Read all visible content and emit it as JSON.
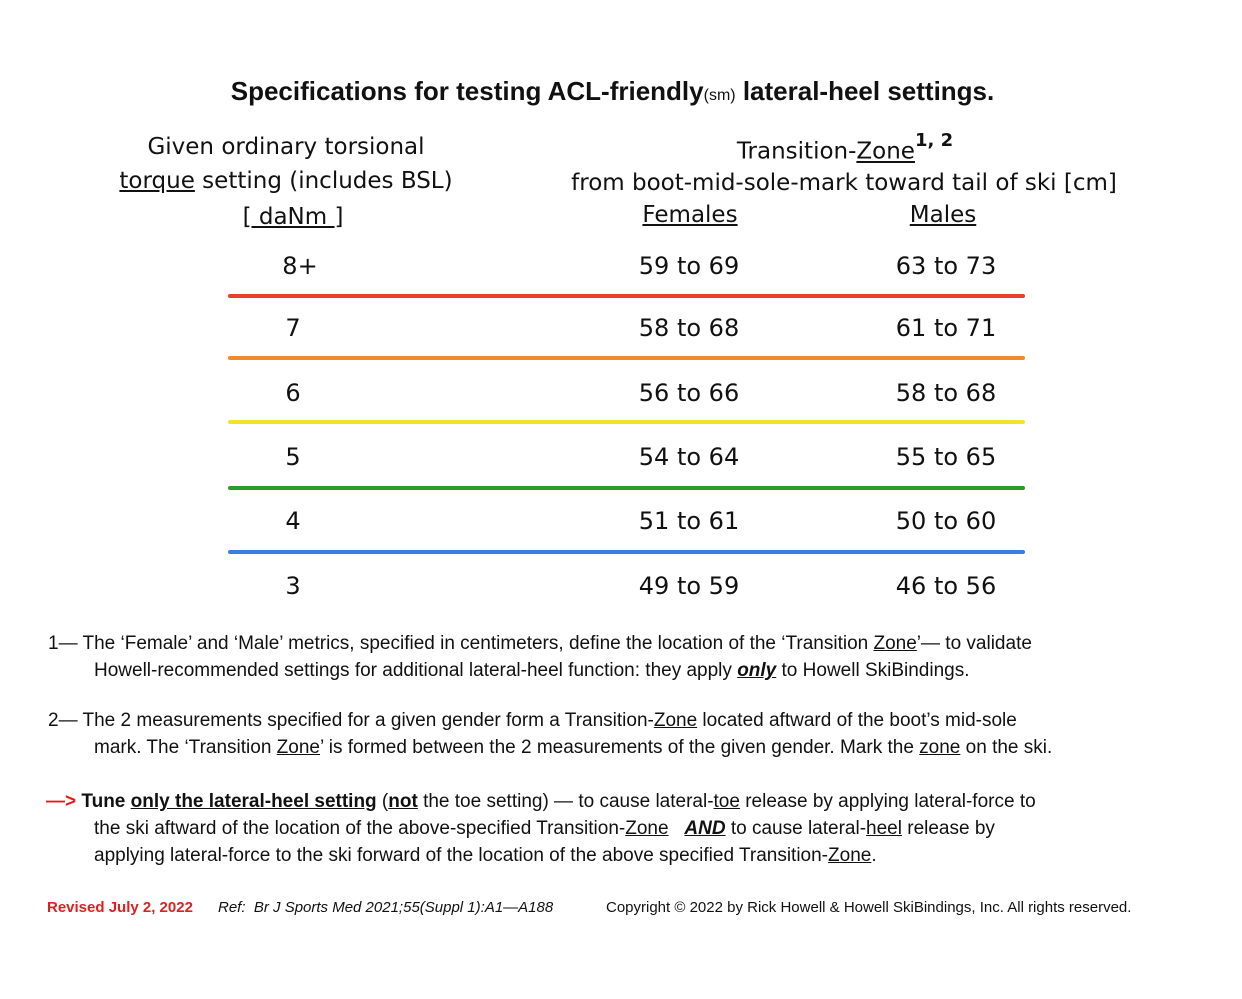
{
  "title": {
    "pre": "Specifications for testing ACL-friendly",
    "sm": "(sm)",
    "post": " lateral-heel settings."
  },
  "left_header": {
    "line1": "Given ordinary torsional",
    "line2_u": "torque",
    "line2_rest": " setting (includes BSL)",
    "unit": "[ daNm ]"
  },
  "right_header": {
    "line1_pre": "Transition-",
    "line1_u": "Zone",
    "sup": "1, 2",
    "line2": "from boot-mid-sole-mark toward tail of ski [cm]",
    "females": "Females",
    "males": "Males"
  },
  "rows": [
    {
      "torque": "8+",
      "female": "59 to 69",
      "male": "63 to 73"
    },
    {
      "torque": "7",
      "female": "58 to 68",
      "male": "61 to 71"
    },
    {
      "torque": "6",
      "female": "56 to 66",
      "male": "58 to 68"
    },
    {
      "torque": "5",
      "female": "54 to 64",
      "male": "55 to 65"
    },
    {
      "torque": "4",
      "female": "51 to 61",
      "male": "50 to 60"
    },
    {
      "torque": "3",
      "female": "49 to 59",
      "male": "46 to 56"
    }
  ],
  "rule_colors": [
    "#e8402a",
    "#f08a2a",
    "#f2e22a",
    "#2a9a2a",
    "#3a7ee0"
  ],
  "notes": {
    "n1_a": "1—  The ‘Female’ and ‘Male’ metrics, specified in centimeters, define the location of the ‘Transition ",
    "n1_zone": "Zone",
    "n1_b": "’— to validate",
    "n1_c": "Howell-recommended settings for additional lateral-heel function:  they apply  ",
    "n1_only": "only",
    "n1_d": "  to Howell SkiBindings.",
    "n2_a": "2—  The 2 measurements specified for a given gender form a Transition-",
    "n2_zone": "Zone",
    "n2_b": " located aftward of the boot’s mid-sole",
    "n2_c": "mark.  The ‘Transition ",
    "n2_zone2": "Zone",
    "n2_d": "’ is formed between the 2 measurements of the given gender.  Mark the ",
    "n2_zone3": "zone",
    "n2_e": " on the ski.",
    "n3_arrow": "—>",
    "n3_tune": " Tune ",
    "n3_tune_u": "only the lateral-heel setting",
    "n3_a": "  (",
    "n3_not": "not",
    "n3_b": " the toe setting) — to cause lateral-",
    "n3_toe": "toe",
    "n3_c": " release by applying lateral-force to",
    "n3_d": "the ski aftward of the location of the above-specified Transition-",
    "n3_zone": "Zone",
    "n3_e": "   ",
    "n3_and": "AND",
    "n3_f": "  to cause lateral-",
    "n3_heel": "heel",
    "n3_g": " release by",
    "n3_h": "applying lateral-force to the ski forward of the location of the above specified Transition-",
    "n3_zone2": "Zone",
    "n3_i": "."
  },
  "footer": {
    "revised": "Revised July 2, 2022",
    "ref_label": "Ref:",
    "ref": "Br J Sports Med 2021;55(Suppl 1):A1—A188",
    "copyright": "Copyright © 2022 by Rick Howell & Howell SkiBindings, Inc. All rights reserved."
  }
}
